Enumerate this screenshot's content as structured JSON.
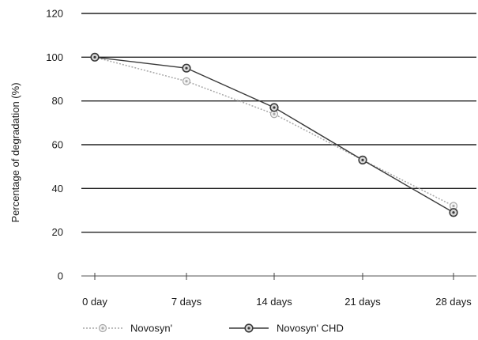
{
  "chart_data": {
    "type": "line",
    "title": "",
    "xlabel": "",
    "ylabel": "Percentage of degradation (%)",
    "categories": [
      "0 day",
      "7 days",
      "14 days",
      "21 days",
      "28 days"
    ],
    "ylim": [
      0,
      120
    ],
    "yticks": [
      "0",
      "20",
      "40",
      "60",
      "80",
      "100",
      "120"
    ],
    "grid": true,
    "legend_position": "bottom",
    "series": [
      {
        "name": "Novosyn'",
        "values": [
          100,
          89,
          74,
          53,
          32
        ],
        "color": "#a8a8a8",
        "line_style": "dotted"
      },
      {
        "name": "Novosyn' CHD",
        "values": [
          100,
          95,
          77,
          53,
          29
        ],
        "color": "#3a3a3a",
        "line_style": "solid"
      }
    ]
  }
}
